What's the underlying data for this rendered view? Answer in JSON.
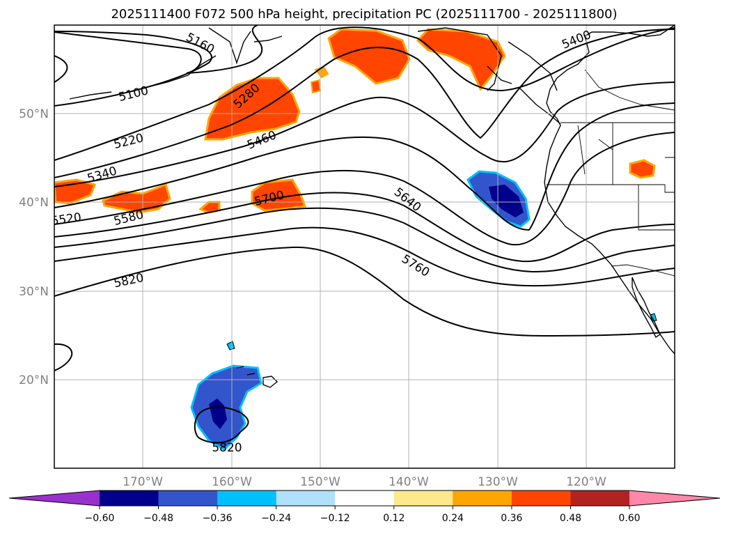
{
  "chart_data": {
    "type": "contour-map",
    "title": "2025111400 F072 500 hPa height, precipitation PC (2025111700 - 2025111800)",
    "x_ticks": [
      "170°W",
      "160°W",
      "150°W",
      "140°W",
      "130°W",
      "120°W"
    ],
    "x_values": [
      -170,
      -160,
      -150,
      -140,
      -130,
      -120
    ],
    "y_ticks": [
      "50°N",
      "40°N",
      "30°N",
      "20°N"
    ],
    "y_values": [
      50,
      40,
      30,
      20
    ],
    "lon_range": [
      -180,
      -110
    ],
    "lat_range": [
      10,
      60
    ],
    "grid": true,
    "height_contour_labels": [
      "5100",
      "5160",
      "5220",
      "5280",
      "5340",
      "5400",
      "5460",
      "5520",
      "5580",
      "5640",
      "5700",
      "5760",
      "5820",
      "5820"
    ],
    "colorbar": {
      "orientation": "horizontal",
      "extend": "both",
      "tick_labels": [
        "−0.60",
        "−0.48",
        "−0.36",
        "−0.24",
        "−0.12",
        "0.12",
        "0.24",
        "0.36",
        "0.48",
        "0.60"
      ],
      "boundaries": [
        -0.6,
        -0.48,
        -0.36,
        -0.24,
        -0.12,
        0.12,
        0.24,
        0.36,
        0.48,
        0.6
      ],
      "colors": [
        "#9932cc",
        "#00008b",
        "#3355cc",
        "#00bfff",
        "#b0e0fa",
        "#ffffff",
        "#fde98c",
        "#ffa500",
        "#ff4500",
        "#b22222",
        "#ff88aa"
      ]
    }
  }
}
